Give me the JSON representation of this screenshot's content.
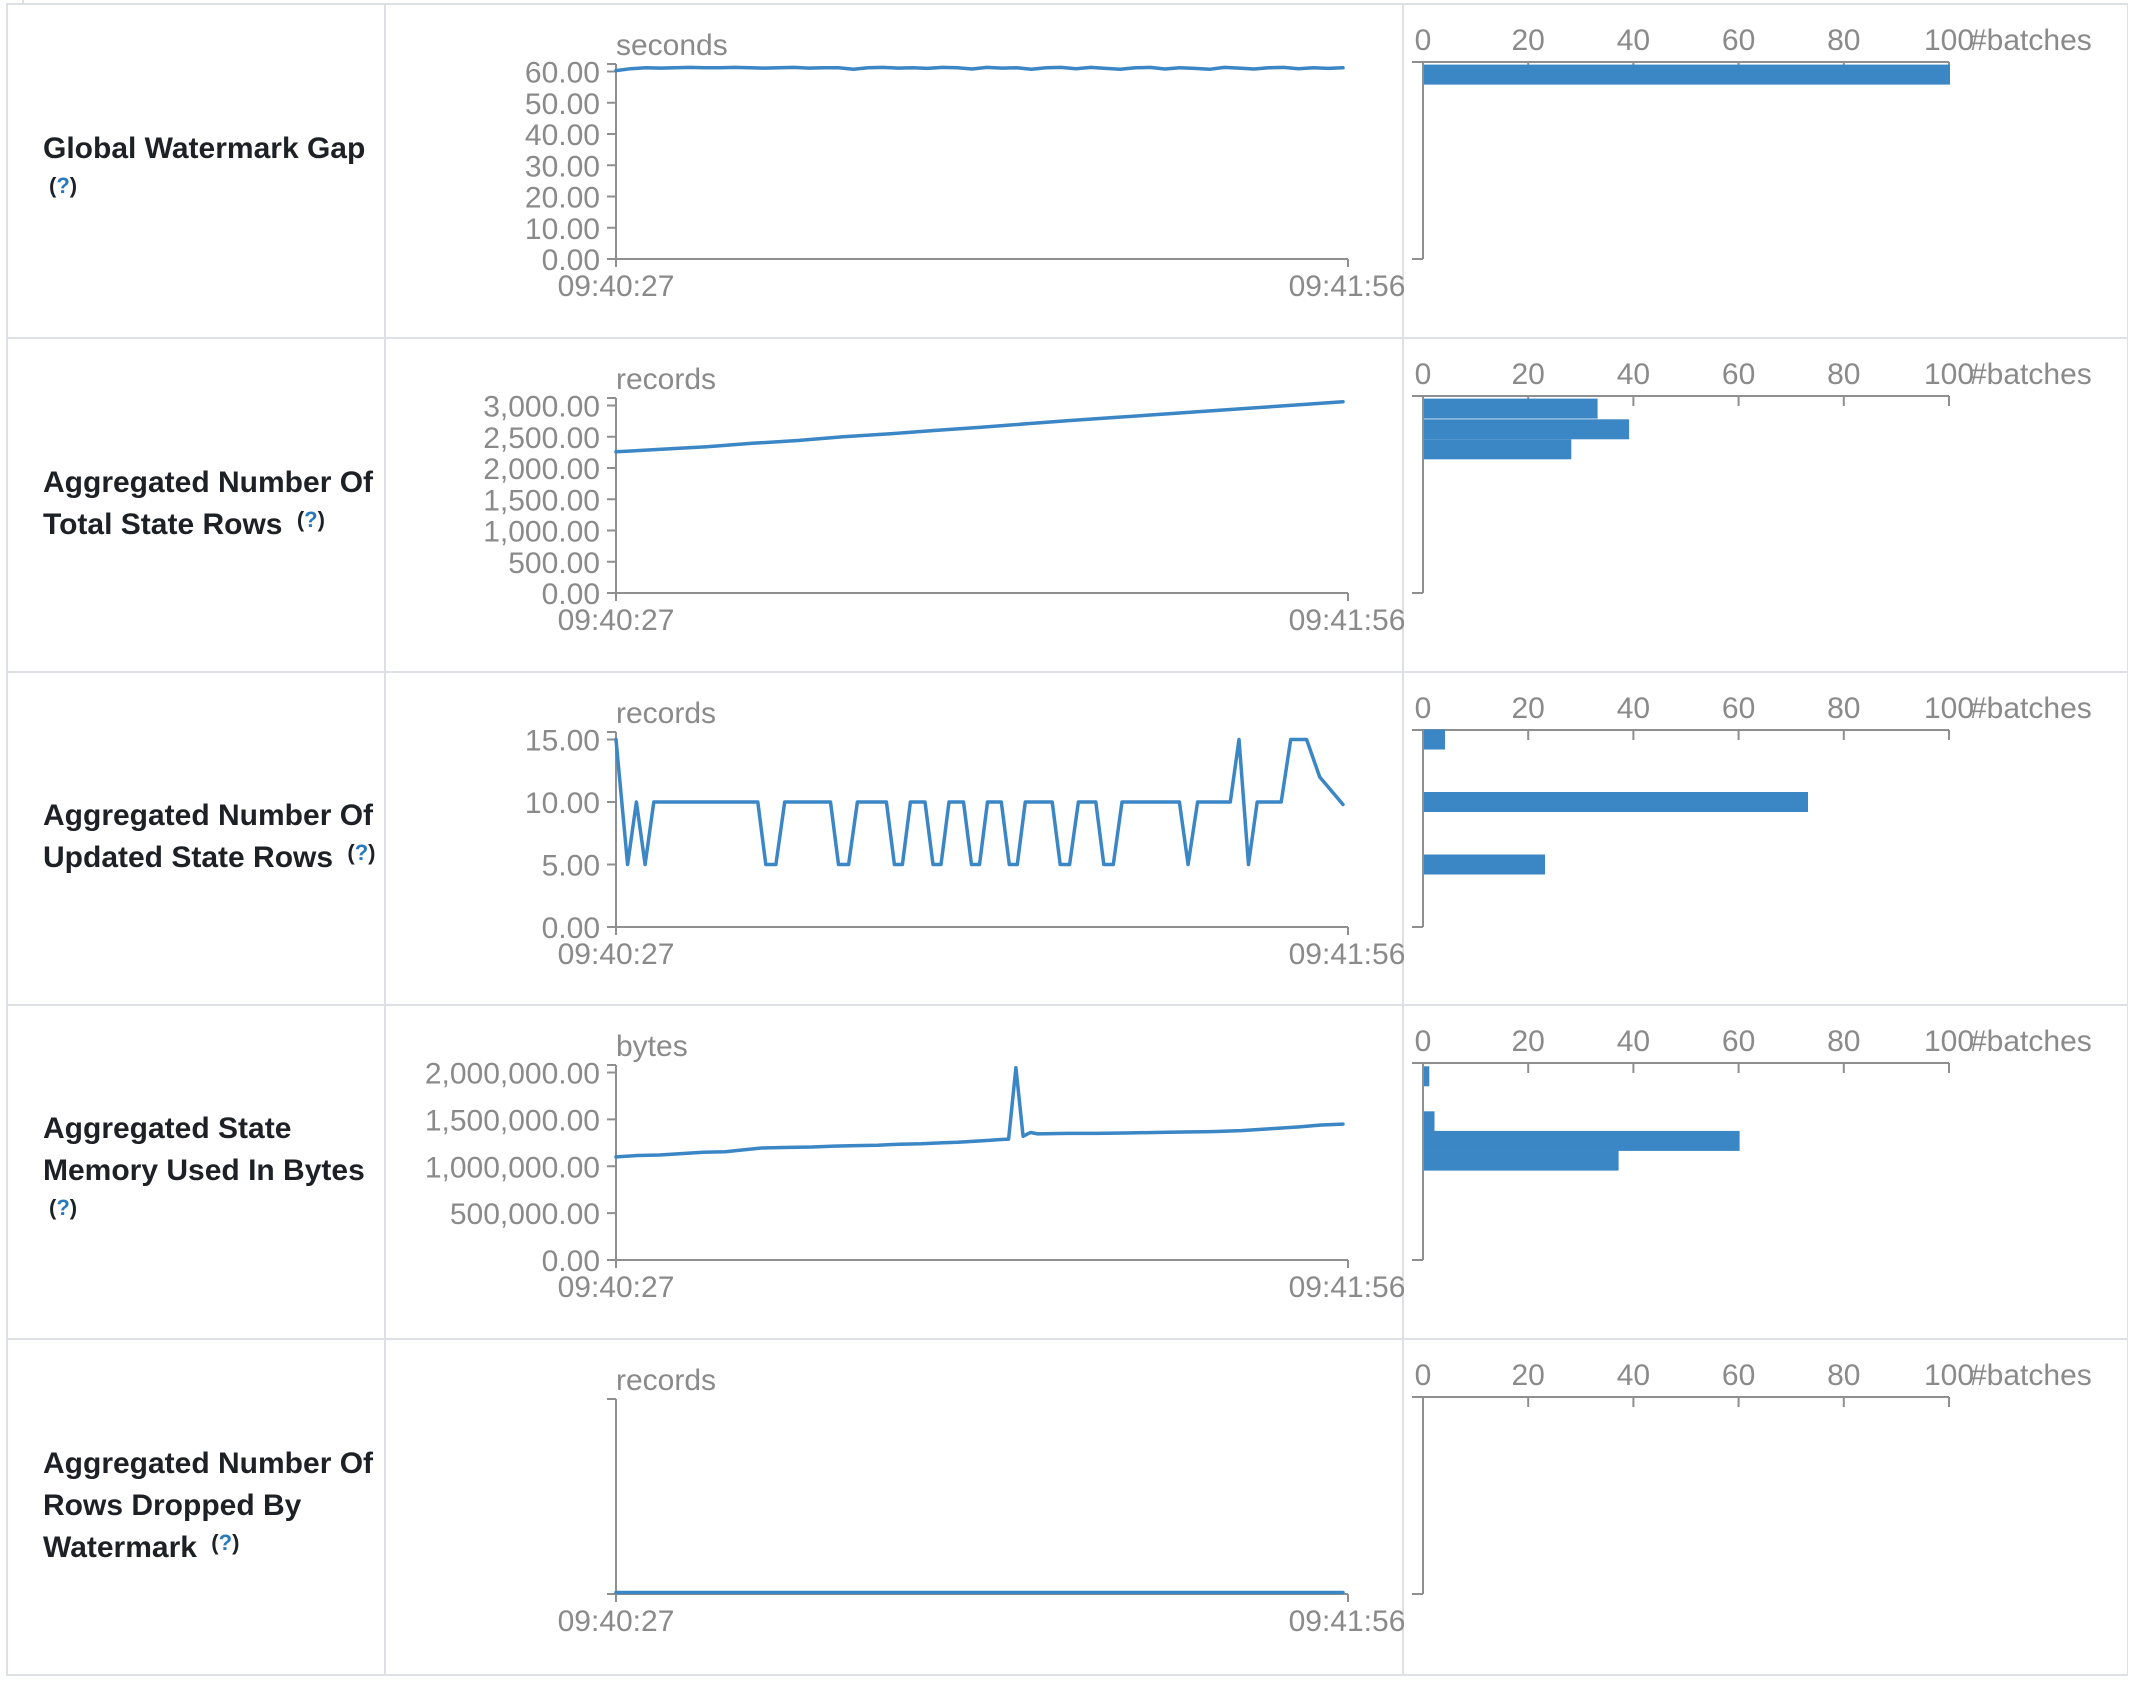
{
  "colors": {
    "accent_blue": "#3b86c5",
    "axis_grey": "#8f8f8f",
    "text_grey": "#8a8a8a",
    "label_text": "#1d2125",
    "help_blue": "#2878be",
    "border": "#dde1e6"
  },
  "time_axis": {
    "start": "09:40:27",
    "end": "09:41:56"
  },
  "histogram_axis": {
    "ticks": [
      "0",
      "20",
      "40",
      "60",
      "80",
      "100"
    ],
    "max": 100,
    "label": "#batches"
  },
  "rows": [
    {
      "title_lines": [
        "Global Watermark Gap",
        "(?)"
      ],
      "chart": 0
    },
    {
      "title_lines": [
        "Aggregated Number Of",
        "Total State Rows (?)"
      ],
      "chart": 1
    },
    {
      "title_lines": [
        "Aggregated Number Of",
        "Updated State Rows (?)"
      ],
      "chart": 2
    },
    {
      "title_lines": [
        "Aggregated State",
        "Memory Used In Bytes",
        "(?)"
      ],
      "chart": 3
    },
    {
      "title_lines": [
        "Aggregated Number Of",
        "Rows Dropped By",
        "Watermark (?)"
      ],
      "chart": 4
    }
  ],
  "chart_data": [
    {
      "type": "line+histogram",
      "title": "Global Watermark Gap",
      "unit": "seconds",
      "x_range": [
        "09:40:27",
        "09:41:56"
      ],
      "y_ticks": [
        "60.00",
        "50.00",
        "40.00",
        "30.00",
        "20.00",
        "10.00",
        "0.00"
      ],
      "y_max": 60,
      "line_values": [
        60.3,
        60.9,
        61.2,
        61.1,
        61.2,
        61.3,
        61.2,
        61.2,
        61.3,
        61.2,
        61.1,
        61.2,
        61.3,
        61.1,
        61.2,
        61.2,
        60.7,
        61.2,
        61.3,
        61.1,
        61.2,
        61.0,
        61.3,
        61.2,
        60.8,
        61.3,
        61.1,
        61.2,
        60.7,
        61.2,
        61.3,
        60.9,
        61.3,
        61.0,
        60.7,
        61.2,
        61.3,
        60.8,
        61.2,
        61.0,
        60.7,
        61.3,
        61.1,
        60.8,
        61.2,
        61.3,
        60.9,
        61.2,
        61.0,
        61.2
      ],
      "histogram_bars": [
        {
          "bin": 59,
          "count": 100
        }
      ]
    },
    {
      "type": "line+histogram",
      "title": "Aggregated Number Of Total State Rows",
      "unit": "records",
      "x_range": [
        "09:40:27",
        "09:41:56"
      ],
      "y_ticks": [
        "3,000.00",
        "2,500.00",
        "2,000.00",
        "1,500.00",
        "1,000.00",
        "500.00",
        "0.00"
      ],
      "y_max": 3000,
      "line_values": [
        2260,
        2300,
        2340,
        2395,
        2440,
        2500,
        2545,
        2600,
        2650,
        2705,
        2760,
        2810,
        2860,
        2910,
        2960,
        3010,
        3060
      ],
      "histogram_bars": [
        {
          "bin": 2950,
          "count": 33
        },
        {
          "bin": 2620,
          "count": 39
        },
        {
          "bin": 2300,
          "count": 28
        }
      ]
    },
    {
      "type": "line+histogram",
      "title": "Aggregated Number Of Updated State Rows",
      "unit": "records",
      "x_range": [
        "09:40:27",
        "09:41:56"
      ],
      "y_ticks": [
        "15.00",
        "10.00",
        "5.00",
        "0.00"
      ],
      "y_max": 15,
      "line_points": [
        [
          0,
          15
        ],
        [
          0.016,
          5
        ],
        [
          0.028,
          10
        ],
        [
          0.04,
          5
        ],
        [
          0.052,
          10
        ],
        [
          0.195,
          10
        ],
        [
          0.206,
          5
        ],
        [
          0.22,
          5
        ],
        [
          0.232,
          10
        ],
        [
          0.295,
          10
        ],
        [
          0.306,
          5
        ],
        [
          0.32,
          5
        ],
        [
          0.332,
          10
        ],
        [
          0.372,
          10
        ],
        [
          0.383,
          5
        ],
        [
          0.394,
          5
        ],
        [
          0.405,
          10
        ],
        [
          0.425,
          10
        ],
        [
          0.436,
          5
        ],
        [
          0.447,
          5
        ],
        [
          0.458,
          10
        ],
        [
          0.478,
          10
        ],
        [
          0.489,
          5
        ],
        [
          0.5,
          5
        ],
        [
          0.511,
          10
        ],
        [
          0.53,
          10
        ],
        [
          0.541,
          5
        ],
        [
          0.552,
          5
        ],
        [
          0.563,
          10
        ],
        [
          0.6,
          10
        ],
        [
          0.611,
          5
        ],
        [
          0.624,
          5
        ],
        [
          0.636,
          10
        ],
        [
          0.66,
          10
        ],
        [
          0.671,
          5
        ],
        [
          0.684,
          5
        ],
        [
          0.696,
          10
        ],
        [
          0.775,
          10
        ],
        [
          0.787,
          5
        ],
        [
          0.8,
          10
        ],
        [
          0.845,
          10
        ],
        [
          0.857,
          15
        ],
        [
          0.87,
          5
        ],
        [
          0.882,
          10
        ],
        [
          0.915,
          10
        ],
        [
          0.928,
          15
        ],
        [
          0.95,
          15
        ],
        [
          0.968,
          12
        ],
        [
          1,
          9.8
        ]
      ],
      "histogram_bars": [
        {
          "bin": 15,
          "count": 4
        },
        {
          "bin": 10,
          "count": 73
        },
        {
          "bin": 5,
          "count": 23
        }
      ]
    },
    {
      "type": "line+histogram",
      "title": "Aggregated State Memory Used In Bytes",
      "unit": "bytes",
      "x_range": [
        "09:40:27",
        "09:41:56"
      ],
      "y_ticks": [
        "2,000,000.00",
        "1,500,000.00",
        "1,000,000.00",
        "500,000.00",
        "0.00"
      ],
      "y_max": 2000000,
      "line_points": [
        [
          0,
          1100000
        ],
        [
          0.03,
          1115000
        ],
        [
          0.06,
          1120000
        ],
        [
          0.09,
          1135000
        ],
        [
          0.12,
          1150000
        ],
        [
          0.15,
          1155000
        ],
        [
          0.17,
          1170000
        ],
        [
          0.2,
          1195000
        ],
        [
          0.23,
          1200000
        ],
        [
          0.27,
          1205000
        ],
        [
          0.3,
          1215000
        ],
        [
          0.33,
          1220000
        ],
        [
          0.36,
          1225000
        ],
        [
          0.39,
          1235000
        ],
        [
          0.42,
          1240000
        ],
        [
          0.45,
          1250000
        ],
        [
          0.47,
          1255000
        ],
        [
          0.49,
          1265000
        ],
        [
          0.51,
          1275000
        ],
        [
          0.53,
          1285000
        ],
        [
          0.54,
          1290000
        ],
        [
          0.55,
          2050000
        ],
        [
          0.56,
          1320000
        ],
        [
          0.57,
          1360000
        ],
        [
          0.58,
          1345000
        ],
        [
          0.62,
          1350000
        ],
        [
          0.66,
          1350000
        ],
        [
          0.7,
          1355000
        ],
        [
          0.74,
          1360000
        ],
        [
          0.78,
          1365000
        ],
        [
          0.82,
          1370000
        ],
        [
          0.86,
          1380000
        ],
        [
          0.9,
          1400000
        ],
        [
          0.94,
          1420000
        ],
        [
          0.97,
          1440000
        ],
        [
          1,
          1450000
        ]
      ],
      "histogram_bars": [
        {
          "bin": 1960000,
          "count": 1
        },
        {
          "bin": 1480000,
          "count": 2
        },
        {
          "bin": 1270000,
          "count": 60
        },
        {
          "bin": 1060000,
          "count": 37
        }
      ]
    },
    {
      "type": "line+histogram",
      "title": "Aggregated Number Of Rows Dropped By Watermark",
      "unit": "records",
      "x_range": [
        "09:40:27",
        "09:41:56"
      ],
      "y_ticks": [],
      "y_max": null,
      "line_values": [
        0,
        0
      ],
      "histogram_bars": []
    }
  ]
}
